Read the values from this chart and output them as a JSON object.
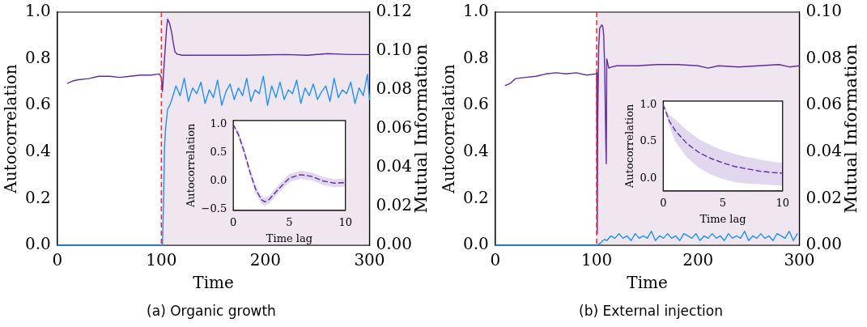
{
  "chart_data": [
    {
      "type": "line",
      "title": "(a) Organic growth",
      "xlabel": "Time",
      "ylabel": "Autocorrelation",
      "y2label": "Mutual Information",
      "xlim": [
        0,
        300
      ],
      "xticks": [
        0,
        100,
        200,
        300
      ],
      "ylim": [
        0,
        1
      ],
      "yticks": [
        {
          "value": 0,
          "label": "0.0"
        },
        {
          "value": 0.2,
          "label": "0.2"
        },
        {
          "value": 0.4,
          "label": "0.4"
        },
        {
          "value": 0.6,
          "label": "0.6"
        },
        {
          "value": 0.8,
          "label": "0.8"
        },
        {
          "value": 1,
          "label": "1.0"
        }
      ],
      "y2lim": [
        0,
        0.12
      ],
      "y2ticks": [
        {
          "value": 0,
          "label": "0.00"
        },
        {
          "value": 0.02,
          "label": "0.02"
        },
        {
          "value": 0.04,
          "label": "0.04"
        },
        {
          "value": 0.06,
          "label": "0.06"
        },
        {
          "value": 0.08,
          "label": "0.08"
        },
        {
          "value": 0.1,
          "label": "0.10"
        },
        {
          "value": 0.12,
          "label": "0.12"
        }
      ],
      "marker": "none",
      "line_style": "solid",
      "ref_lines": [
        {
          "axis": "x",
          "value": 100,
          "color": "#ff2020",
          "line_style": "dashed"
        }
      ],
      "bands": [
        {
          "axis": "x",
          "from": 100,
          "to": 300,
          "color": "#efe6f0"
        }
      ],
      "series": [
        {
          "color": "#5e2ca5",
          "x": [
            10,
            15,
            20,
            30,
            40,
            50,
            60,
            70,
            80,
            90,
            98,
            100,
            101,
            103,
            105,
            106,
            108,
            110,
            111,
            113,
            115,
            120,
            140,
            160,
            180,
            200,
            220,
            240,
            260,
            280,
            300
          ],
          "values": [
            0.695,
            0.705,
            0.71,
            0.715,
            0.725,
            0.725,
            0.72,
            0.725,
            0.73,
            0.73,
            0.735,
            0.72,
            0.66,
            0.8,
            0.93,
            0.97,
            0.95,
            0.91,
            0.88,
            0.83,
            0.82,
            0.815,
            0.815,
            0.815,
            0.815,
            0.817,
            0.818,
            0.815,
            0.822,
            0.818,
            0.818
          ]
        },
        {
          "color": "#1e90ff",
          "axis": "y2",
          "x": [
            0,
            20,
            40,
            60,
            80,
            95,
            100,
            101,
            102,
            103,
            104,
            105,
            106,
            108,
            110,
            114,
            118,
            122,
            126,
            130,
            134,
            138,
            142,
            146,
            150,
            154,
            158,
            162,
            166,
            170,
            174,
            178,
            182,
            186,
            190,
            194,
            198,
            202,
            206,
            210,
            214,
            218,
            222,
            226,
            230,
            234,
            238,
            242,
            246,
            250,
            254,
            258,
            262,
            266,
            270,
            274,
            278,
            282,
            286,
            290,
            294,
            298,
            300
          ],
          "values": [
            0,
            0,
            0,
            0,
            0,
            0,
            0,
            0,
            0.02,
            0.05,
            0.06,
            0.065,
            0.07,
            0.072,
            0.075,
            0.082,
            0.077,
            0.086,
            0.074,
            0.081,
            0.078,
            0.084,
            0.073,
            0.08,
            0.076,
            0.085,
            0.072,
            0.079,
            0.083,
            0.075,
            0.081,
            0.077,
            0.086,
            0.074,
            0.08,
            0.078,
            0.087,
            0.072,
            0.082,
            0.076,
            0.084,
            0.075,
            0.08,
            0.078,
            0.085,
            0.073,
            0.081,
            0.077,
            0.083,
            0.075,
            0.079,
            0.082,
            0.074,
            0.086,
            0.076,
            0.08,
            0.078,
            0.084,
            0.073,
            0.081,
            0.077,
            0.088,
            0.075
          ]
        }
      ]
    },
    {
      "type": "line",
      "xlabel": "Time lag",
      "ylabel": "Autocorrelation",
      "xlim": [
        0,
        10
      ],
      "xticks": [
        0,
        5,
        10
      ],
      "ylim": [
        -0.52,
        1.07
      ],
      "yticks": [
        {
          "value": -0.5,
          "label": "−0.5"
        },
        {
          "value": 0,
          "label": "0.0"
        },
        {
          "value": 0.5,
          "label": "0.5"
        },
        {
          "value": 1,
          "label": "1.0"
        }
      ],
      "marker": "none",
      "line_style": "dashed",
      "series": [
        {
          "color": "#5e2ca5",
          "x": [
            0,
            0.5,
            1,
            1.5,
            2,
            2.5,
            2.8,
            3.2,
            4,
            5,
            6,
            7,
            8,
            9,
            10
          ],
          "values": [
            1,
            0.8,
            0.5,
            0.15,
            -0.15,
            -0.33,
            -0.37,
            -0.33,
            -0.15,
            0.05,
            0.11,
            0.08,
            0,
            -0.04,
            -0.03
          ],
          "lower": [
            0.99,
            0.73,
            0.43,
            0.08,
            -0.22,
            -0.4,
            -0.44,
            -0.4,
            -0.22,
            -0.02,
            0.04,
            0.01,
            -0.07,
            -0.11,
            -0.1
          ],
          "upper": [
            1,
            0.87,
            0.57,
            0.22,
            -0.08,
            -0.26,
            -0.3,
            -0.26,
            -0.08,
            0.12,
            0.18,
            0.15,
            0.07,
            0.03,
            0.04
          ]
        }
      ]
    },
    {
      "type": "line",
      "title": "(b) External injection",
      "xlabel": "Time",
      "ylabel": "Autocorrelation",
      "y2label": "Mutual Information",
      "xlim": [
        0,
        300
      ],
      "xticks": [
        0,
        100,
        200,
        300
      ],
      "ylim": [
        0,
        1
      ],
      "yticks": [
        {
          "value": 0,
          "label": "0.0"
        },
        {
          "value": 0.2,
          "label": "0.2"
        },
        {
          "value": 0.4,
          "label": "0.4"
        },
        {
          "value": 0.6,
          "label": "0.6"
        },
        {
          "value": 0.8,
          "label": "0.8"
        },
        {
          "value": 1,
          "label": "1.0"
        }
      ],
      "y2lim": [
        0,
        0.1
      ],
      "y2ticks": [
        {
          "value": 0,
          "label": "0.00"
        },
        {
          "value": 0.02,
          "label": "0.02"
        },
        {
          "value": 0.04,
          "label": "0.04"
        },
        {
          "value": 0.06,
          "label": "0.06"
        },
        {
          "value": 0.08,
          "label": "0.08"
        },
        {
          "value": 0.1,
          "label": "0.10"
        }
      ],
      "marker": "none",
      "line_style": "solid",
      "ref_lines": [
        {
          "axis": "x",
          "value": 100,
          "color": "#ff2020",
          "line_style": "dashed"
        }
      ],
      "bands": [
        {
          "axis": "x",
          "from": 100,
          "to": 300,
          "color": "#efe6f0"
        }
      ],
      "series": [
        {
          "color": "#5e2ca5",
          "x": [
            10,
            15,
            20,
            30,
            40,
            50,
            60,
            70,
            80,
            90,
            99,
            100,
            100.6,
            101,
            102,
            103,
            105,
            106,
            107,
            108,
            109,
            109.5,
            110,
            112,
            115,
            120,
            140,
            160,
            180,
            200,
            210,
            220,
            240,
            260,
            280,
            290,
            300
          ],
          "values": [
            0.685,
            0.695,
            0.715,
            0.72,
            0.725,
            0.735,
            0.74,
            0.735,
            0.74,
            0.73,
            0.735,
            0.74,
            0.05,
            0.5,
            0.85,
            0.93,
            0.945,
            0.94,
            0.9,
            0.75,
            0.45,
            0.35,
            0.8,
            0.76,
            0.765,
            0.77,
            0.77,
            0.775,
            0.775,
            0.77,
            0.76,
            0.77,
            0.765,
            0.77,
            0.775,
            0.765,
            0.77
          ]
        },
        {
          "color": "#1e90ff",
          "axis": "y2",
          "x": [
            0,
            50,
            100,
            102,
            104,
            106,
            108,
            110,
            114,
            118,
            122,
            126,
            130,
            134,
            138,
            142,
            146,
            150,
            154,
            158,
            162,
            166,
            170,
            174,
            178,
            182,
            186,
            190,
            194,
            198,
            202,
            206,
            210,
            214,
            218,
            222,
            226,
            230,
            234,
            238,
            242,
            246,
            250,
            254,
            258,
            262,
            266,
            270,
            274,
            278,
            282,
            286,
            290,
            294,
            298
          ],
          "values": [
            0,
            0,
            0,
            0.0005,
            0.001,
            0.002,
            0.0025,
            0.002,
            0.004,
            0.003,
            0.005,
            0.003,
            0.004,
            0.002,
            0.005,
            0.003,
            0.004,
            0.003,
            0.006,
            0.002,
            0.004,
            0.003,
            0.005,
            0.003,
            0.004,
            0.002,
            0.005,
            0.004,
            0.003,
            0.005,
            0.002,
            0.004,
            0.003,
            0.005,
            0.003,
            0.004,
            0.002,
            0.005,
            0.003,
            0.004,
            0.003,
            0.006,
            0.002,
            0.004,
            0.003,
            0.005,
            0.003,
            0.004,
            0.002,
            0.005,
            0.004,
            0.003,
            0.006,
            0.002,
            0.005
          ]
        }
      ]
    },
    {
      "type": "line",
      "xlabel": "Time lag",
      "ylabel": "Autocorrelation",
      "xlim": [
        0,
        10
      ],
      "xticks": [
        0,
        5,
        10
      ],
      "ylim": [
        -0.17,
        1.05
      ],
      "yticks": [
        {
          "value": 0,
          "label": "0.0"
        },
        {
          "value": 0.5,
          "label": "0.5"
        },
        {
          "value": 1,
          "label": "1.0"
        }
      ],
      "marker": "none",
      "line_style": "dashed",
      "series": [
        {
          "color": "#5e2ca5",
          "x": [
            0,
            0.5,
            1,
            2,
            3,
            4,
            5,
            6,
            7,
            8,
            9,
            10
          ],
          "values": [
            1,
            0.78,
            0.65,
            0.47,
            0.35,
            0.27,
            0.21,
            0.16,
            0.13,
            0.1,
            0.08,
            0.07
          ],
          "lower": [
            1,
            0.72,
            0.5,
            0.28,
            0.14,
            0.05,
            -0.01,
            -0.05,
            -0.07,
            -0.08,
            -0.09,
            -0.1
          ],
          "upper": [
            1,
            0.86,
            0.8,
            0.65,
            0.53,
            0.45,
            0.38,
            0.33,
            0.29,
            0.26,
            0.23,
            0.21
          ]
        }
      ]
    }
  ]
}
